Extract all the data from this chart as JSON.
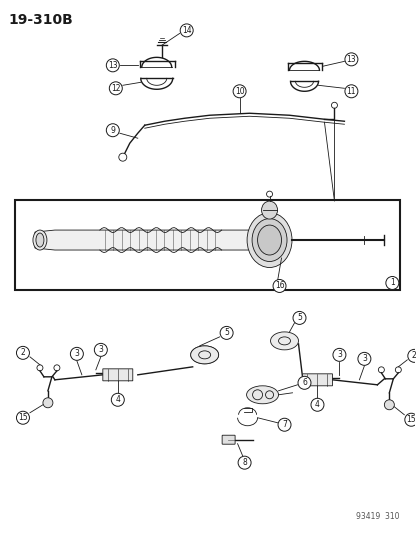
{
  "title": "19-310B",
  "footer": "93419  310",
  "bg_color": "#ffffff",
  "line_color": "#1a1a1a",
  "label_color": "#1a1a1a",
  "fig_width": 4.16,
  "fig_height": 5.33,
  "dpi": 100,
  "lw_thin": 0.6,
  "lw_med": 1.0,
  "lw_thick": 1.5,
  "label_r": 6.5,
  "label_fs": 5.5
}
